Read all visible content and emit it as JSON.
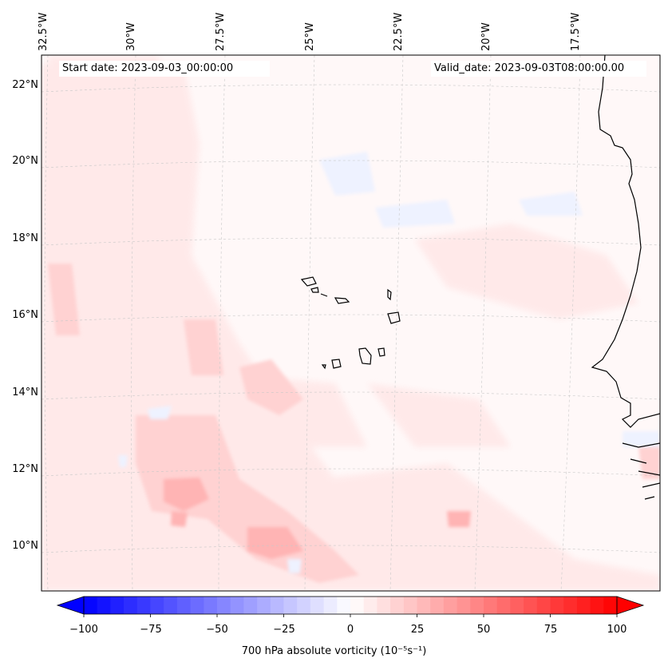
{
  "map": {
    "start_date_text": "Start date: 2023-09-03_00:00:00",
    "valid_date_text": "Valid_date: 2023-09-03T08:00:00.00",
    "longitude_labels": [
      "32.5°W",
      "30°W",
      "27.5°W",
      "25°W",
      "22.5°W",
      "20°W",
      "17.5°W"
    ],
    "latitude_labels": [
      "22°N",
      "20°N",
      "18°N",
      "16°N",
      "14°N",
      "12°N",
      "10°N"
    ],
    "field": "700 hPa absolute vorticity",
    "colors": {
      "ocean_background": "#fff8f8",
      "coastline": "#000000",
      "gridline": "#c8c8c8",
      "weak_positive": "#ffe8e8",
      "moderate_positive": "#ffd2d2",
      "strong_positive": "#ffb4b4",
      "weak_negative": "#eef2ff",
      "moderate_negative": "#d8dcff"
    }
  },
  "colorbar": {
    "title_text": "700 hPa absolute vorticity (10⁻⁵s⁻¹)",
    "tick_labels": [
      "−100",
      "−75",
      "−50",
      "−25",
      "0",
      "25",
      "50",
      "75",
      "100"
    ],
    "min": -100,
    "max": 100,
    "extend": "both",
    "colormap": "bwr",
    "low_color": "#0000ff",
    "mid_color": "#ffffff",
    "high_color": "#ff0000"
  }
}
